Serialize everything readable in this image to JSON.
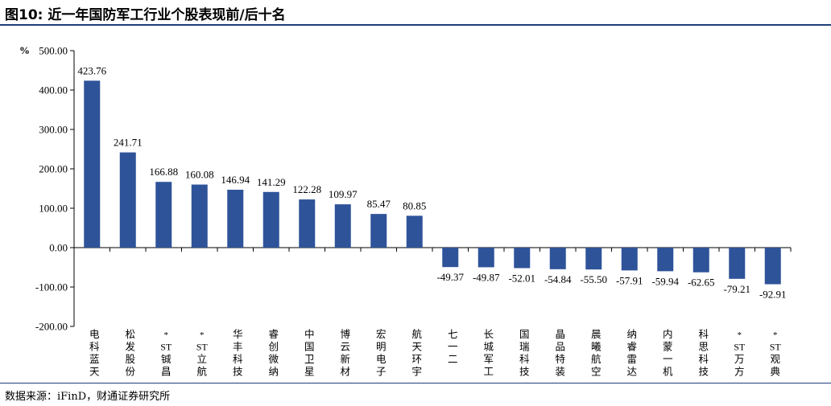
{
  "header": {
    "title": "图10: 近一年国防军工行业个股表现前/后十名"
  },
  "footer": {
    "source": "数据来源：iFinD，财通证券研究所"
  },
  "colors": {
    "bar": "#2e5399",
    "axis": "#000000",
    "rule": "#1f3d7a"
  },
  "chart_data": {
    "type": "bar",
    "title": "",
    "ylabel": "%",
    "ylim": [
      -200,
      500
    ],
    "yticks": [
      "500.00",
      "400.00",
      "300.00",
      "200.00",
      "100.00",
      "0.00",
      "-100.00",
      "-200.00"
    ],
    "ytick_values": [
      500,
      400,
      300,
      200,
      100,
      0,
      -100,
      -200
    ],
    "grid": false,
    "categories": [
      "电科蓝天",
      "松发股份",
      "*ST铖昌",
      "*ST立航",
      "华丰科技",
      "睿创微纳",
      "中国卫星",
      "博云新材",
      "宏明电子",
      "航天环宇",
      "七一二",
      "长城军工",
      "国瑞科技",
      "晶品特装",
      "晨曦航空",
      "纳睿雷达",
      "内蒙一机",
      "科思科技",
      "*ST万方",
      "*ST观典"
    ],
    "values": [
      423.76,
      241.71,
      166.88,
      160.08,
      146.94,
      141.29,
      122.28,
      109.97,
      85.47,
      80.85,
      -49.37,
      -49.87,
      -52.01,
      -54.84,
      -55.5,
      -57.91,
      -59.94,
      -62.65,
      -79.21,
      -92.91
    ],
    "labels": [
      "423.76",
      "241.71",
      "166.88",
      "160.08",
      "146.94",
      "141.29",
      "122.28",
      "109.97",
      "85.47",
      "80.85",
      "-49.37",
      "-49.87",
      "-52.01",
      "-54.84",
      "-55.50",
      "-57.91",
      "-59.94",
      "-62.65",
      "-79.21",
      "-92.91"
    ]
  }
}
